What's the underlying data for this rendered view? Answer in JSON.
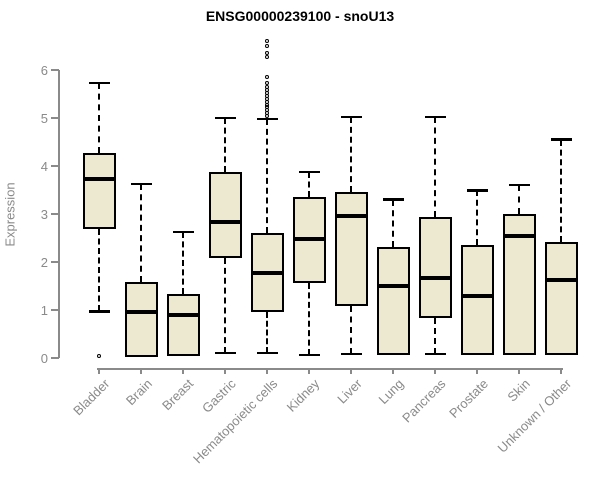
{
  "chart_data": {
    "type": "boxplot",
    "title": "ENSG00000239100 - snoU13",
    "xlabel": "",
    "ylabel": "Expression",
    "ylim": [
      0,
      6.6
    ],
    "yticks": [
      "0",
      "1",
      "2",
      "3",
      "4",
      "5",
      "6"
    ],
    "grid": false,
    "legend": "none",
    "categories": [
      "Bladder",
      "Brain",
      "Breast",
      "Gastric",
      "Hematopoietic cells",
      "Kidney",
      "Liver",
      "Lung",
      "Pancreas",
      "Prostate",
      "Skin",
      "Unknown / Other"
    ],
    "boxes": [
      {
        "category": "Bladder",
        "whisker_low": 0.97,
        "q1": 2.68,
        "median": 3.72,
        "q3": 4.28,
        "whisker_high": 5.73,
        "outliers": [
          0.05
        ]
      },
      {
        "category": "Brain",
        "whisker_low": 0.03,
        "q1": 0.03,
        "median": 0.95,
        "q3": 1.58,
        "whisker_high": 3.63,
        "outliers": []
      },
      {
        "category": "Breast",
        "whisker_low": 0.05,
        "q1": 0.05,
        "median": 0.9,
        "q3": 1.33,
        "whisker_high": 2.62,
        "outliers": []
      },
      {
        "category": "Gastric",
        "whisker_low": 0.1,
        "q1": 2.08,
        "median": 2.84,
        "q3": 3.88,
        "whisker_high": 5.0,
        "outliers": []
      },
      {
        "category": "Hematopoietic cells",
        "whisker_low": 0.1,
        "q1": 0.96,
        "median": 1.78,
        "q3": 2.6,
        "whisker_high": 4.98,
        "outliers": [
          5.04,
          5.1,
          5.16,
          5.22,
          5.28,
          5.34,
          5.4,
          5.46,
          5.52,
          5.58,
          5.65,
          5.73,
          5.85,
          6.27,
          6.35,
          6.5,
          6.6
        ]
      },
      {
        "category": "Kidney",
        "whisker_low": 0.06,
        "q1": 1.56,
        "median": 2.48,
        "q3": 3.36,
        "whisker_high": 3.88,
        "outliers": []
      },
      {
        "category": "Liver",
        "whisker_low": 0.08,
        "q1": 1.08,
        "median": 2.95,
        "q3": 3.45,
        "whisker_high": 5.02,
        "outliers": []
      },
      {
        "category": "Lung",
        "whisker_low": 0.06,
        "q1": 0.06,
        "median": 1.49,
        "q3": 2.31,
        "whisker_high": 3.3,
        "outliers": []
      },
      {
        "category": "Pancreas",
        "whisker_low": 0.08,
        "q1": 0.83,
        "median": 1.66,
        "q3": 2.93,
        "whisker_high": 5.02,
        "outliers": []
      },
      {
        "category": "Prostate",
        "whisker_low": 0.06,
        "q1": 0.06,
        "median": 1.3,
        "q3": 2.35,
        "whisker_high": 3.49,
        "outliers": []
      },
      {
        "category": "Skin",
        "whisker_low": 0.06,
        "q1": 0.06,
        "median": 2.55,
        "q3": 3.01,
        "whisker_high": 3.6,
        "outliers": []
      },
      {
        "category": "Unknown / Other",
        "whisker_low": 0.06,
        "q1": 0.06,
        "median": 1.63,
        "q3": 2.42,
        "whisker_high": 4.55,
        "outliers": []
      }
    ],
    "colors": {
      "box_fill": "#EDE8D0",
      "box_border": "#000000",
      "median": "#000000",
      "whisker": "#000000",
      "axis": "#8a8a8a",
      "title": "#000000",
      "background": "#ffffff"
    }
  }
}
